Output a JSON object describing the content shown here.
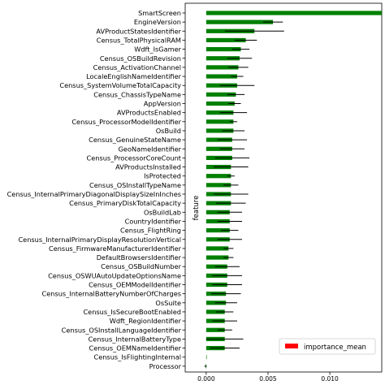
{
  "chart_data": {
    "type": "bar",
    "orientation": "horizontal",
    "ylabel": "feature",
    "xlabel": "",
    "xlim": [
      -0.0017,
      0.0142
    ],
    "xticks": [
      0.0,
      0.005,
      0.01
    ],
    "xtick_labels": [
      "0.000",
      "0.005",
      "0.010"
    ],
    "legend": {
      "position": "lower-right",
      "entries": [
        "importance_mean"
      ]
    },
    "colors": {
      "bar": "#008000",
      "errorbar": "#000000",
      "legend_swatch": "#ff0000"
    },
    "categories": [
      "SmartScreen",
      "EngineVersion",
      "AVProductStatesIdentifier",
      "Census_TotalPhysicalRAM",
      "Wdft_IsGamer",
      "Census_OSBuildRevision",
      "Census_ActivationChannel",
      "LocaleEnglishNameIdentifier",
      "Census_SystemVolumeTotalCapacity",
      "Census_ChassisTypeName",
      "AppVersion",
      "AVProductsEnabled",
      "Census_ProcessorModelIdentifier",
      "OsBuild",
      "Census_GenuineStateName",
      "GeoNameIdentifier",
      "Census_ProcessorCoreCount",
      "AVProductsInstalled",
      "IsProtected",
      "Census_OSInstallTypeName",
      "Census_InternalPrimaryDiagonalDisplaySizeInInches",
      "Census_PrimaryDiskTotalCapacity",
      "OsBuildLab",
      "CountryIdentifier",
      "Census_FlightRing",
      "Census_InternalPrimaryDisplayResolutionVertical",
      "Census_FirmwareManufacturerIdentifier",
      "DefaultBrowsersIdentifier",
      "Census_OSBuildNumber",
      "Census_OSWUAutoUpdateOptionsName",
      "Census_OEMModelIdentifier",
      "Census_InternalBatteryNumberOfCharges",
      "OsSuite",
      "Census_IsSecureBootEnabled",
      "Wdft_RegionIdentifier",
      "Census_OSInstallLanguageIdentifier",
      "Census_InternalBatteryType",
      "Census_OEMNameIdentifier",
      "Census_IsFlightingInternal",
      "Processor"
    ],
    "series": [
      {
        "name": "importance_mean",
        "values": [
          0.0142,
          0.0054,
          0.0039,
          0.0032,
          0.0028,
          0.0027,
          0.0026,
          0.0025,
          0.0025,
          0.0024,
          0.0023,
          0.0022,
          0.0022,
          0.0022,
          0.0021,
          0.0021,
          0.0021,
          0.002,
          0.002,
          0.002,
          0.002,
          0.002,
          0.0019,
          0.0019,
          0.0019,
          0.0019,
          0.0018,
          0.0018,
          0.0017,
          0.0017,
          0.0017,
          0.0016,
          0.0016,
          0.0015,
          0.0015,
          0.0015,
          0.0015,
          0.0015,
          0.0,
          -5e-05
        ],
        "errors": [
          0.0,
          0.0008,
          0.0024,
          0.0009,
          0.0007,
          0.001,
          0.0008,
          0.0005,
          0.0014,
          0.0007,
          0.0005,
          0.0011,
          0.0003,
          0.0009,
          0.0012,
          0.001,
          0.0014,
          0.0014,
          0.0003,
          0.0006,
          0.0014,
          0.0012,
          0.001,
          0.001,
          0.0007,
          0.001,
          0.0004,
          0.0004,
          0.001,
          0.0012,
          0.0012,
          0.0012,
          0.0009,
          0.0007,
          0.001,
          0.0006,
          0.0015,
          0.0012,
          0.0,
          0.0001
        ]
      }
    ]
  }
}
